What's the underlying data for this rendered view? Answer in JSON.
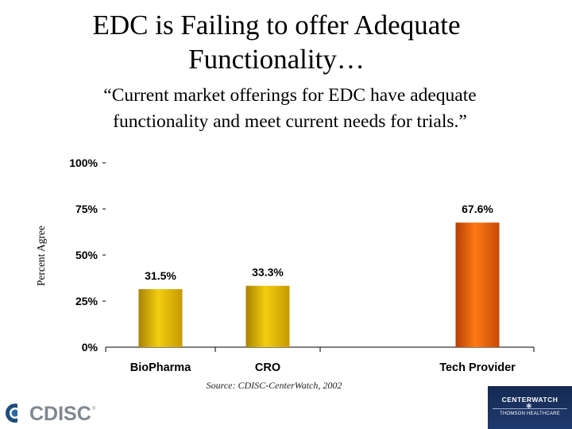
{
  "slide": {
    "title_line1": "EDC is Failing to offer Adequate",
    "title_line2": "Functionality…",
    "subtitle_line1": "“Current market offerings for EDC have adequate",
    "subtitle_line2": "functionality and meet current needs for trials.”",
    "source": "Source: CDISC-CenterWatch, 2002"
  },
  "logos": {
    "cdisc_text": "CDISC",
    "cdisc_mark": "®",
    "centerwatch_text": "CENTERWATCH",
    "centerwatch_sub": "THOMSON HEALTHCARE"
  },
  "chart_data": {
    "type": "bar",
    "categories": [
      "BioPharma",
      "CRO",
      "Tech Provider"
    ],
    "values": [
      31.5,
      33.3,
      67.6
    ],
    "value_labels": [
      "31.5%",
      "33.3%",
      "67.6%"
    ],
    "ylabel": "Percent Agree",
    "xlabel": "",
    "ylim": [
      0,
      100
    ],
    "yticks": [
      0,
      25,
      50,
      75,
      100
    ],
    "ytick_labels": [
      "0%",
      "25%",
      "50%",
      "75%",
      "100%"
    ],
    "grid": false,
    "colors": [
      "#e2b808",
      "#e2b808",
      "#f26a0d"
    ]
  }
}
